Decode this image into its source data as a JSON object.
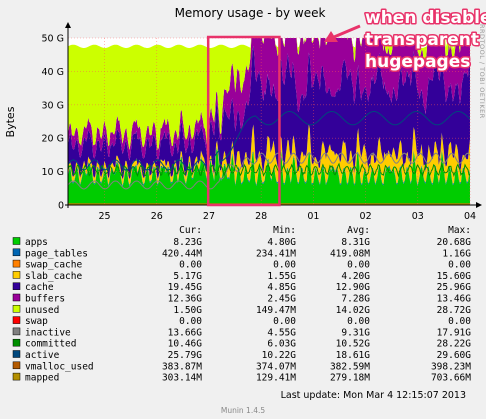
{
  "chart_data": {
    "type": "area",
    "stacked": true,
    "title": "Memory usage - by week",
    "ylabel": "Bytes",
    "xlabel": "",
    "x_ticks": [
      "25",
      "26",
      "27",
      "28",
      "01",
      "02",
      "03",
      "04"
    ],
    "y_ticks": [
      "0",
      "10 G",
      "20 G",
      "30 G",
      "40 G",
      "50 G"
    ],
    "ylim": [
      0,
      50
    ],
    "y_unit": "G",
    "grid": true,
    "sidebar_text": "RRDTOOL / TOBI OETIKER",
    "annotation": {
      "text_lines": [
        "when disable",
        "transparent",
        "hugepages"
      ],
      "arrow": true,
      "highlight_box": true,
      "highlight_x_range": [
        2.8,
        4.05
      ],
      "text_color": "#ffffff",
      "box_color": "#e8336a"
    },
    "legend_header": {
      "cur": "Cur:",
      "min": "Min:",
      "avg": "Avg:",
      "max": "Max:"
    },
    "series": [
      {
        "name": "apps",
        "color": "#00cc00",
        "cur": "8.23G",
        "min": "4.80G",
        "avg": "8.31G",
        "max": "20.68G",
        "kind": "area"
      },
      {
        "name": "page_tables",
        "color": "#0066b3",
        "cur": "420.44M",
        "min": "234.41M",
        "avg": "419.08M",
        "max": "1.16G",
        "kind": "area"
      },
      {
        "name": "swap_cache",
        "color": "#ff8000",
        "cur": "0.00",
        "min": "0.00",
        "avg": "0.00",
        "max": "0.00",
        "kind": "area"
      },
      {
        "name": "slab_cache",
        "color": "#ffcc00",
        "cur": "5.17G",
        "min": "1.55G",
        "avg": "4.20G",
        "max": "15.60G",
        "kind": "area"
      },
      {
        "name": "cache",
        "color": "#330099",
        "cur": "19.45G",
        "min": "4.85G",
        "avg": "12.90G",
        "max": "25.96G",
        "kind": "area"
      },
      {
        "name": "buffers",
        "color": "#990099",
        "cur": "12.36G",
        "min": "2.45G",
        "avg": "7.28G",
        "max": "13.46G",
        "kind": "area"
      },
      {
        "name": "unused",
        "color": "#ccff00",
        "cur": "1.50G",
        "min": "149.47M",
        "avg": "14.02G",
        "max": "28.72G",
        "kind": "area"
      },
      {
        "name": "swap",
        "color": "#ff0000",
        "cur": "0.00",
        "min": "0.00",
        "avg": "0.00",
        "max": "0.00",
        "kind": "area"
      },
      {
        "name": "inactive",
        "color": "#808080",
        "cur": "13.66G",
        "min": "4.55G",
        "avg": "9.31G",
        "max": "17.91G",
        "kind": "line"
      },
      {
        "name": "committed",
        "color": "#008f00",
        "cur": "10.46G",
        "min": "6.03G",
        "avg": "10.52G",
        "max": "28.22G",
        "kind": "line"
      },
      {
        "name": "active",
        "color": "#00487d",
        "cur": "25.79G",
        "min": "10.22G",
        "avg": "18.61G",
        "max": "29.60G",
        "kind": "line"
      },
      {
        "name": "vmalloc_used",
        "color": "#b35a00",
        "cur": "383.87M",
        "min": "374.07M",
        "avg": "382.59M",
        "max": "398.23M",
        "kind": "line"
      },
      {
        "name": "mapped",
        "color": "#b38f00",
        "cur": "303.14M",
        "min": "129.41M",
        "avg": "279.18M",
        "max": "703.66M",
        "kind": "line"
      }
    ],
    "last_update": "Last update: Mon Mar  4 12:15:07 2013",
    "version": "Munin 1.4.5"
  }
}
